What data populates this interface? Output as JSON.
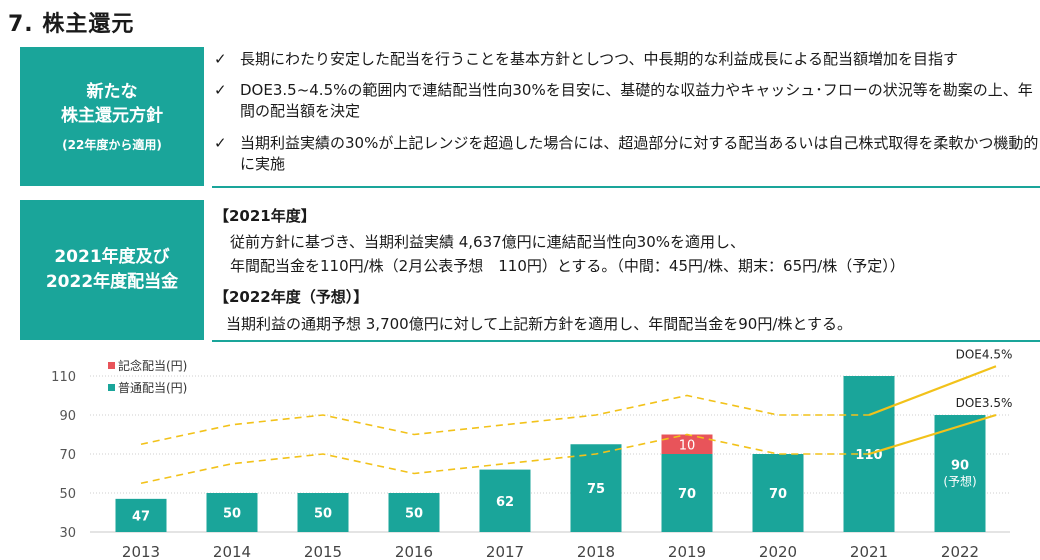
{
  "page_title": "7. 株主還元",
  "policy_box": {
    "line1": "新たな",
    "line2": "株主還元方針",
    "line3": "(22年度から適用)"
  },
  "bullets": [
    "長期にわたり安定した配当を行うことを基本方針としつつ、中長期的な利益成長による配当額増加を目指す",
    "DOE3.5~4.5%の範囲内で連結配当性向30%を目安に、基礎的な収益力やキャッシュ･フローの状況等を勘案の上、年間の配当額を決定",
    "当期利益実績の30%が上記レンジを超過した場合には、超過部分に対する配当あるいは自己株式取得を柔軟かつ機動的に実施"
  ],
  "check_mark": "✓",
  "dividend_box": {
    "line1": "2021年度及び",
    "line2": "2022年度配当金"
  },
  "fy2021": {
    "heading": "【2021年度】",
    "line1": "従前方針に基づき、当期利益実績 4,637億円に連結配当性向30%を適用し、",
    "line2": "年間配当金を110円/株（2月公表予想　110円）とする。（中間：45円/株、期末：65円/株（予定））"
  },
  "fy2022": {
    "heading": "【2022年度（予想）】",
    "line1": "当期利益の通期予想 3,700億円に対して上記新方針を適用し、年間配当金を90円/株とする。"
  },
  "chart_data": {
    "type": "bar",
    "categories": [
      "2013",
      "2014",
      "2015",
      "2016",
      "2017",
      "2018",
      "2019",
      "2020",
      "2021",
      "2022"
    ],
    "series": [
      {
        "name": "普通配当(円)",
        "values": [
          47,
          50,
          50,
          50,
          62,
          75,
          70,
          70,
          110,
          90
        ],
        "color": "#1aa59a"
      },
      {
        "name": "記念配当(円)",
        "values": [
          0,
          0,
          0,
          0,
          0,
          0,
          10,
          0,
          0,
          0
        ],
        "color": "#e8545a"
      }
    ],
    "bar_labels": [
      "47",
      "50",
      "50",
      "50",
      "62",
      "75",
      "70",
      "70",
      "110",
      "90"
    ],
    "bar_sublabels": [
      "",
      "",
      "",
      "",
      "",
      "",
      "",
      "",
      "",
      "(予想)"
    ],
    "commemorative_label": "10",
    "yticks": [
      30,
      50,
      70,
      90,
      110
    ],
    "ylim": [
      30,
      115
    ],
    "grid": true,
    "legend_position": "top-left",
    "lines": [
      {
        "name": "DOE4.5%",
        "values": [
          75,
          85,
          90,
          80,
          85,
          90,
          100,
          90,
          90,
          null
        ],
        "style": "dashed",
        "color": "#f2c21a"
      },
      {
        "name": "DOE3.5%",
        "values": [
          55,
          65,
          70,
          60,
          65,
          70,
          80,
          70,
          70,
          null
        ],
        "style": "dashed",
        "color": "#f2c21a"
      }
    ],
    "projections": [
      {
        "label": "DOE4.5%",
        "from": 90,
        "to": 115
      },
      {
        "label": "DOE3.5%",
        "from": 70,
        "to": 90
      }
    ],
    "colors": {
      "accent": "#1aa59a",
      "commemorative": "#e8545a",
      "doe": "#f2c21a"
    }
  }
}
